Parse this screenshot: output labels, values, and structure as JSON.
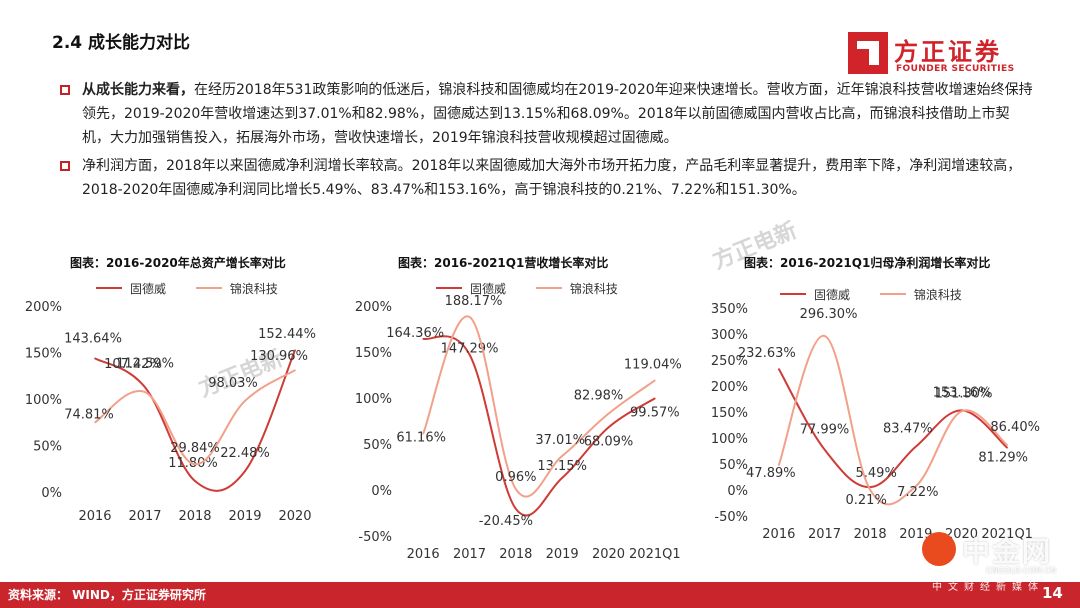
{
  "header": {
    "title": "2.4 成长能力对比",
    "logo_cn": "方正证券",
    "logo_en": "FOUNDER SECURITIES"
  },
  "bullets": [
    {
      "lead": "从成长能力来看，",
      "text": "在经历2018年531政策影响的低迷后，锦浪科技和固德威均在2019-2020年迎来快速增长。营收方面，近年锦浪科技营收增速始终保持领先，2019-2020年营收增速达到37.01%和82.98%，固德威达到13.15%和68.09%。2018年以前固德威国内营收占比高，而锦浪科技借助上市契机，大力加强销售投入，拓展海外市场，营收快速增长，2019年锦浪科技营收规模超过固德威。"
    },
    {
      "lead": "",
      "text": "净利润方面，2018年以来固德威净利润增长率较高。2018年以来固德威加大海外市场开拓力度，产品毛利率显著提升，费用率下降，净利润增速较高，2018-2020年固德威净利润同比增长5.49%、83.47%和153.16%，高于锦浪科技的0.21%、7.22%和151.30%。"
    }
  ],
  "watermarks": [
    "方正电新",
    "方正电新"
  ],
  "colors": {
    "gdw": "#cf3b36",
    "jl": "#f2a08a",
    "accent": "#c8262c"
  },
  "chart_data": [
    {
      "type": "line",
      "title": "图表：2016-2020年总资产增长率对比",
      "categories": [
        "2016",
        "2017",
        "2018",
        "2019",
        "2020"
      ],
      "ylim": [
        0,
        200
      ],
      "yticks": [
        "0%",
        "50%",
        "100%",
        "150%",
        "200%"
      ],
      "series": [
        {
          "name": "固德威",
          "values": [
            143.64,
            112.59,
            11.8,
            22.48,
            152.44
          ],
          "labels": [
            "143.64%",
            "112.59%",
            "11.80%",
            "22.48%",
            "152.44%"
          ]
        },
        {
          "name": "锦浪科技",
          "values": [
            74.81,
            107.42,
            29.84,
            98.03,
            130.96
          ],
          "labels": [
            "74.81%",
            "107.42%",
            "29.84%",
            "98.03%",
            "130.96%"
          ]
        }
      ]
    },
    {
      "type": "line",
      "title": "图表：2016-2021Q1营收增长率对比",
      "categories": [
        "2016",
        "2017",
        "2018",
        "2019",
        "2020",
        "2021Q1"
      ],
      "ylim": [
        -50,
        200
      ],
      "yticks": [
        "-50%",
        "0%",
        "50%",
        "100%",
        "150%",
        "200%"
      ],
      "series": [
        {
          "name": "固德威",
          "values": [
            164.36,
            147.29,
            -20.45,
            13.15,
            68.09,
            99.57
          ],
          "labels": [
            "164.36%",
            "147.29%",
            "-20.45%",
            "13.15%",
            "68.09%",
            "99.57%"
          ]
        },
        {
          "name": "锦浪科技",
          "values": [
            61.16,
            188.17,
            0.96,
            37.01,
            82.98,
            119.04
          ],
          "labels": [
            "61.16%",
            "188.17%",
            "0.96%",
            "37.01%",
            "82.98%",
            "119.04%"
          ]
        }
      ]
    },
    {
      "type": "line",
      "title": "图表：2016-2021Q1归母净利润增长率对比",
      "categories": [
        "2016",
        "2017",
        "2018",
        "2019",
        "2020",
        "2021Q1"
      ],
      "ylim": [
        -50,
        350
      ],
      "yticks": [
        "-50%",
        "0%",
        "50%",
        "100%",
        "150%",
        "200%",
        "250%",
        "300%",
        "350%"
      ],
      "series": [
        {
          "name": "固德威",
          "values": [
            232.63,
            77.99,
            5.49,
            83.47,
            153.16,
            81.29
          ],
          "labels": [
            "232.63%",
            "77.99%",
            "5.49%",
            "83.47%",
            "153.16%",
            "81.29%"
          ]
        },
        {
          "name": "锦浪科技",
          "values": [
            47.89,
            296.3,
            0.21,
            7.22,
            151.3,
            86.4
          ],
          "labels": [
            "47.89%",
            "296.30%",
            "0.21%",
            "7.22%",
            "151.30%",
            "86.40%"
          ]
        }
      ]
    }
  ],
  "footer": {
    "source": "资料来源：  WIND，方正证券研究所",
    "page": "14"
  },
  "cngold": {
    "cn": "中金网",
    "url": "CNGOLD.COM.CN",
    "tag": "中文财经新媒体"
  }
}
